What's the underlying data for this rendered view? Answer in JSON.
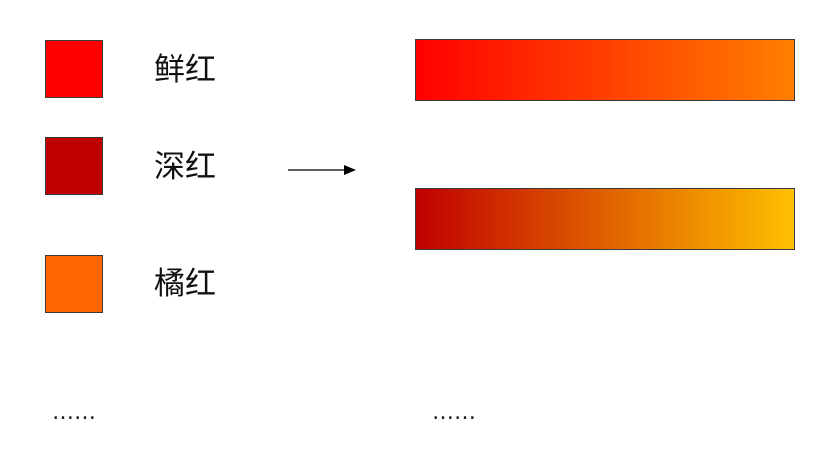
{
  "colors": [
    {
      "label": "鲜红",
      "hex": "#FF0000"
    },
    {
      "label": "深红",
      "hex": "#C00000"
    },
    {
      "label": "橘红",
      "hex": "#FF6600"
    }
  ],
  "gradients": [
    {
      "from": "#FF0000",
      "to": "#FF7F00"
    },
    {
      "from": "#C00000",
      "to": "#FFC000"
    }
  ],
  "arrow_icon": "arrow-right-icon",
  "left_ellipsis": "……",
  "right_ellipsis": "……"
}
